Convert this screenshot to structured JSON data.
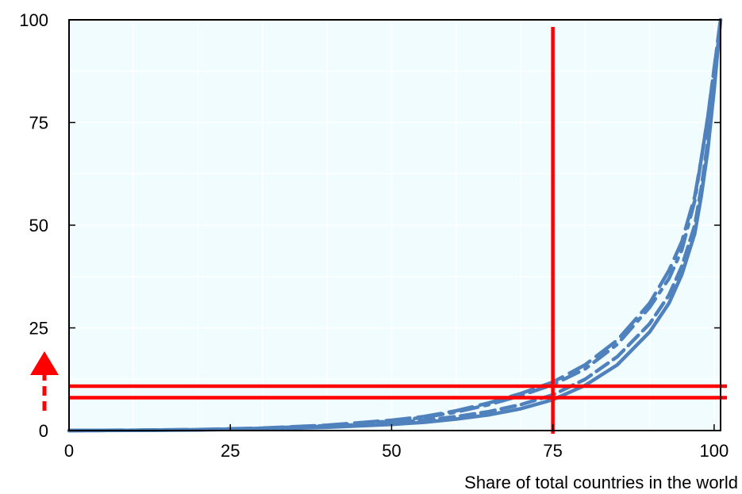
{
  "chart_data": {
    "type": "line",
    "title": "",
    "xlabel": "Share of total countries in the world",
    "ylabel": "",
    "xlim": [
      0,
      101
    ],
    "ylim": [
      0,
      100
    ],
    "x_ticks": [
      0,
      25,
      50,
      75,
      100
    ],
    "y_ticks": [
      0,
      25,
      50,
      75,
      100
    ],
    "x_tick_labels": [
      "0",
      "25",
      "50",
      "75",
      "100"
    ],
    "y_tick_labels": [
      "0",
      "25",
      "50",
      "75",
      "100"
    ],
    "grid": true,
    "plot_background": "#f0fcfd",
    "series_color": "#4f81bd",
    "highlight_color": "#ff0000",
    "series": [
      {
        "style": "solid",
        "x": [
          0,
          10,
          20,
          30,
          40,
          50,
          55,
          60,
          65,
          70,
          75,
          80,
          85,
          90,
          93,
          95,
          97,
          98,
          99,
          100,
          101
        ],
        "y": [
          0,
          0.05,
          0.15,
          0.4,
          0.8,
          1.5,
          2.0,
          2.8,
          3.8,
          5.3,
          7.5,
          11,
          16,
          24,
          31,
          38,
          48,
          57,
          68,
          83,
          100
        ]
      },
      {
        "style": "dash",
        "x": [
          0,
          10,
          20,
          30,
          40,
          50,
          55,
          60,
          65,
          70,
          75,
          80,
          85,
          90,
          93,
          95,
          97,
          98,
          99,
          100,
          101
        ],
        "y": [
          0,
          0.06,
          0.2,
          0.5,
          1.0,
          1.9,
          2.5,
          3.4,
          4.6,
          6.3,
          8.7,
          12.5,
          18,
          26,
          33,
          40,
          50,
          59,
          70,
          85,
          100
        ]
      },
      {
        "style": "long-dash",
        "x": [
          0,
          10,
          20,
          30,
          40,
          50,
          55,
          60,
          65,
          70,
          75,
          80,
          85,
          90,
          93,
          95,
          97,
          98,
          99,
          100,
          101
        ],
        "y": [
          0,
          0.08,
          0.25,
          0.6,
          1.3,
          2.5,
          3.4,
          4.8,
          6.7,
          9.0,
          11.8,
          16,
          22,
          31,
          39,
          46,
          57,
          66,
          76,
          88,
          100
        ]
      },
      {
        "style": "dash-dot",
        "x": [
          0,
          10,
          20,
          30,
          40,
          50,
          55,
          60,
          65,
          70,
          75,
          80,
          85,
          90,
          93,
          95,
          97,
          98,
          99,
          100,
          101
        ],
        "y": [
          0,
          0.07,
          0.22,
          0.55,
          1.2,
          2.3,
          3.2,
          4.5,
          6.3,
          8.5,
          11.2,
          15,
          21,
          30,
          37,
          44,
          56,
          66,
          76,
          88,
          100
        ]
      }
    ],
    "reference_lines": {
      "vertical_x": 75,
      "horizontal_y": [
        10.8,
        8.0
      ]
    },
    "arrow": {
      "direction": "up",
      "style": "dashed"
    }
  }
}
